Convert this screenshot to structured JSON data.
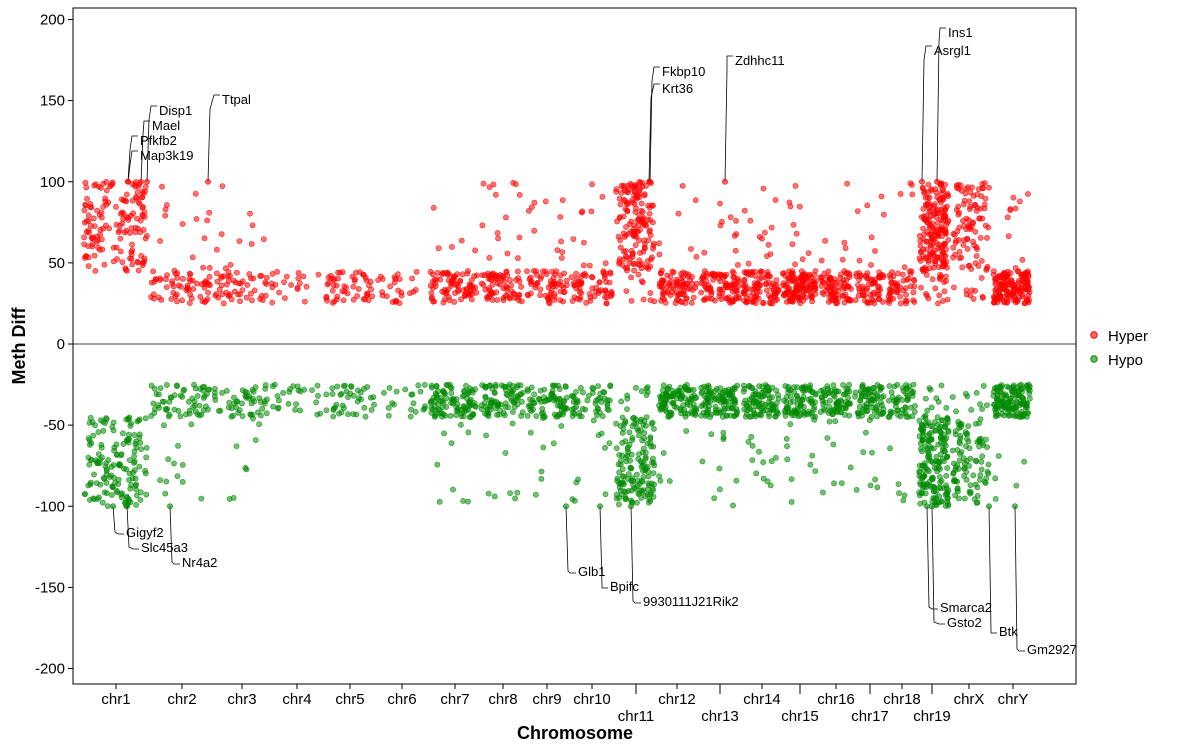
{
  "chart_data": {
    "type": "scatter",
    "title": "",
    "xlabel": "Chromosome",
    "ylabel": "Meth Diff",
    "ylim": [
      -205,
      200
    ],
    "yticks": [
      200,
      150,
      100,
      50,
      0,
      -50,
      -100,
      -150,
      -200
    ],
    "grid": false,
    "legend": {
      "placement": "right",
      "entries": [
        {
          "name": "Hyper",
          "color": "#FF0000"
        },
        {
          "name": "Hypo",
          "color": "#008B00"
        }
      ]
    },
    "chromosomes": [
      {
        "name": "chr1",
        "hyper_low": 0,
        "hyper_high": 150,
        "hypo_low": 0,
        "hypo_high": 150
      },
      {
        "name": "chr2",
        "hyper_low": 60,
        "hyper_high": 15,
        "hypo_low": 60,
        "hypo_high": 12
      },
      {
        "name": "chr3",
        "hyper_low": 50,
        "hyper_high": 10,
        "hypo_low": 50,
        "hypo_high": 8
      },
      {
        "name": "chr4",
        "hyper_low": 20,
        "hyper_high": 0,
        "hypo_low": 25,
        "hypo_high": 0
      },
      {
        "name": "chr5",
        "hyper_low": 50,
        "hyper_high": 0,
        "hypo_low": 40,
        "hypo_high": 0
      },
      {
        "name": "chr6",
        "hyper_low": 25,
        "hyper_high": 0,
        "hypo_low": 20,
        "hypo_high": 0
      },
      {
        "name": "chr7",
        "hyper_low": 80,
        "hyper_high": 5,
        "hypo_low": 100,
        "hypo_high": 10
      },
      {
        "name": "chr8",
        "hyper_low": 70,
        "hyper_high": 15,
        "hypo_low": 80,
        "hypo_high": 8
      },
      {
        "name": "chr9",
        "hyper_low": 60,
        "hyper_high": 12,
        "hypo_low": 70,
        "hypo_high": 8
      },
      {
        "name": "chr10",
        "hyper_low": 60,
        "hyper_high": 10,
        "hypo_low": 50,
        "hypo_high": 10
      },
      {
        "name": "chr11",
        "hyper_low": 10,
        "hyper_high": 150,
        "hypo_low": 10,
        "hypo_high": 150
      },
      {
        "name": "chr12",
        "hyper_low": 80,
        "hyper_high": 8,
        "hypo_low": 100,
        "hypo_high": 5
      },
      {
        "name": "chr13",
        "hyper_low": 90,
        "hyper_high": 10,
        "hypo_low": 100,
        "hypo_high": 10
      },
      {
        "name": "chr14",
        "hyper_low": 90,
        "hyper_high": 12,
        "hypo_low": 90,
        "hypo_high": 12
      },
      {
        "name": "chr15",
        "hyper_low": 120,
        "hyper_high": 10,
        "hypo_low": 80,
        "hypo_high": 10
      },
      {
        "name": "chr16",
        "hyper_low": 80,
        "hyper_high": 6,
        "hypo_low": 70,
        "hypo_high": 8
      },
      {
        "name": "chr17",
        "hyper_low": 60,
        "hyper_high": 8,
        "hypo_low": 70,
        "hypo_high": 8
      },
      {
        "name": "chr18",
        "hyper_low": 50,
        "hyper_high": 5,
        "hypo_low": 50,
        "hypo_high": 5
      },
      {
        "name": "chr19",
        "hyper_low": 20,
        "hyper_high": 180,
        "hypo_low": 10,
        "hypo_high": 180
      },
      {
        "name": "chrX",
        "hyper_low": 10,
        "hyper_high": 90,
        "hypo_low": 10,
        "hypo_high": 90
      },
      {
        "name": "chrY",
        "hyper_low": 150,
        "hyper_high": 10,
        "hypo_low": 130,
        "hypo_high": 5
      }
    ],
    "labelled_genes": [
      {
        "gene": "Map3k19",
        "chr": "chr1",
        "value": 100
      },
      {
        "gene": "Pfkfb2",
        "chr": "chr1",
        "value": 100
      },
      {
        "gene": "Mael",
        "chr": "chr1",
        "value": 100
      },
      {
        "gene": "Disp1",
        "chr": "chr1",
        "value": 100
      },
      {
        "gene": "Ttpal",
        "chr": "chr2",
        "value": 100
      },
      {
        "gene": "Fkbp10",
        "chr": "chr11",
        "value": 100
      },
      {
        "gene": "Krt36",
        "chr": "chr11",
        "value": 100
      },
      {
        "gene": "Zdhhc11",
        "chr": "chr13",
        "value": 100
      },
      {
        "gene": "Ins1",
        "chr": "chr19",
        "value": 100
      },
      {
        "gene": "Asrgl1",
        "chr": "chr19",
        "value": 100
      },
      {
        "gene": "Gigyf2",
        "chr": "chr1",
        "value": -100
      },
      {
        "gene": "Slc45a3",
        "chr": "chr1",
        "value": -100
      },
      {
        "gene": "Nr4a2",
        "chr": "chr2",
        "value": -100
      },
      {
        "gene": "Glb1",
        "chr": "chr10",
        "value": -100
      },
      {
        "gene": "Bpifc",
        "chr": "chr10",
        "value": -100
      },
      {
        "gene": "9930111J21Rik2",
        "chr": "chr11",
        "value": -100
      },
      {
        "gene": "Smarca2",
        "chr": "chr19",
        "value": -100
      },
      {
        "gene": "Gsto2",
        "chr": "chr19",
        "value": -100
      },
      {
        "gene": "Btk",
        "chr": "chrX",
        "value": -100
      },
      {
        "gene": "Gm2927",
        "chr": "chrY",
        "value": -100
      }
    ]
  }
}
